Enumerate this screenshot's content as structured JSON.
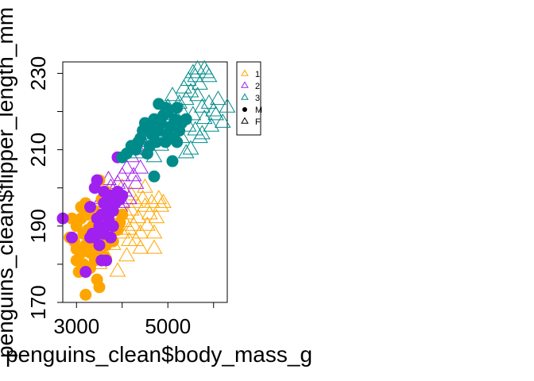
{
  "chart_data": {
    "type": "scatter",
    "title": "",
    "xlabel": "penguins_clean$body_mass_g",
    "ylabel": "penguins_clean$flipper_length_mm",
    "xlim": [
      2700,
      6300
    ],
    "ylim": [
      170,
      233
    ],
    "x_ticks": [
      3000,
      4000,
      5000,
      6000
    ],
    "x_tick_labels": [
      "3000",
      "",
      "5000",
      ""
    ],
    "y_ticks": [
      170,
      180,
      190,
      200,
      210,
      220,
      230
    ],
    "y_tick_labels": [
      "170",
      "",
      "190",
      "",
      "210",
      "",
      "230"
    ],
    "grid": false,
    "legend_position": "right",
    "legend": [
      {
        "label": "1",
        "symbol": "triangle",
        "color": "#FFA500"
      },
      {
        "label": "2",
        "symbol": "triangle",
        "color": "#A020F0"
      },
      {
        "label": "3",
        "symbol": "triangle",
        "color": "#008B8B"
      },
      {
        "label": "M",
        "symbol": "dot",
        "color": "#000000"
      },
      {
        "label": "F",
        "symbol": "triangle",
        "color": "#000000"
      }
    ],
    "colors": {
      "1": "#FFA500",
      "2": "#A020F0",
      "3": "#008B8B"
    },
    "series": [
      {
        "group": "1",
        "sex": "M",
        "marker": "dot",
        "points": [
          [
            2850,
            187
          ],
          [
            2900,
            192
          ],
          [
            2950,
            186
          ],
          [
            3000,
            190
          ],
          [
            3000,
            184
          ],
          [
            3000,
            181
          ],
          [
            3050,
            178
          ],
          [
            3100,
            183
          ],
          [
            3100,
            192
          ],
          [
            3150,
            188
          ],
          [
            3150,
            180
          ],
          [
            3200,
            185
          ],
          [
            3200,
            172
          ],
          [
            3250,
            193
          ],
          [
            3250,
            189
          ],
          [
            3300,
            187
          ],
          [
            3300,
            183
          ],
          [
            3350,
            190
          ],
          [
            3350,
            185
          ],
          [
            3400,
            181
          ],
          [
            3400,
            188
          ],
          [
            3450,
            184
          ],
          [
            3450,
            176
          ],
          [
            3500,
            174
          ],
          [
            3500,
            186
          ],
          [
            3550,
            191
          ],
          [
            3550,
            189
          ],
          [
            3600,
            187
          ],
          [
            3600,
            182
          ],
          [
            3650,
            185
          ],
          [
            3700,
            190
          ],
          [
            3750,
            188
          ],
          [
            3800,
            186
          ],
          [
            3850,
            190
          ],
          [
            3900,
            189
          ],
          [
            3950,
            191
          ],
          [
            4000,
            193
          ],
          [
            3400,
            194
          ],
          [
            3200,
            196
          ],
          [
            3100,
            195
          ],
          [
            3650,
            199
          ],
          [
            3700,
            195
          ],
          [
            3600,
            193
          ],
          [
            3550,
            197
          ],
          [
            3300,
            179
          ],
          [
            3500,
            202
          ],
          [
            3400,
            190
          ]
        ]
      },
      {
        "group": "1",
        "sex": "F",
        "marker": "triangle",
        "points": [
          [
            3500,
            180
          ],
          [
            3600,
            183
          ],
          [
            3700,
            187
          ],
          [
            3750,
            190
          ],
          [
            3800,
            185
          ],
          [
            3850,
            189
          ],
          [
            3900,
            192
          ],
          [
            3950,
            195
          ],
          [
            4000,
            188
          ],
          [
            4050,
            191
          ],
          [
            4100,
            193
          ],
          [
            4150,
            186
          ],
          [
            4200,
            194
          ],
          [
            4250,
            190
          ],
          [
            4300,
            196
          ],
          [
            4350,
            192
          ],
          [
            4400,
            188
          ],
          [
            4450,
            197
          ],
          [
            4500,
            195
          ],
          [
            4550,
            190
          ],
          [
            4600,
            193
          ],
          [
            4650,
            196
          ],
          [
            4700,
            184
          ],
          [
            4750,
            192
          ],
          [
            4800,
            197
          ],
          [
            4850,
            195
          ],
          [
            4900,
            196
          ],
          [
            3700,
            202
          ],
          [
            4000,
            200
          ],
          [
            4200,
            198
          ],
          [
            3900,
            178
          ],
          [
            4100,
            182
          ],
          [
            4300,
            186
          ],
          [
            4500,
            200
          ],
          [
            3650,
            196
          ],
          [
            3800,
            199
          ],
          [
            4700,
            188
          ],
          [
            4400,
            184
          ],
          [
            3550,
            187
          ],
          [
            4150,
            189
          ]
        ]
      },
      {
        "group": "2",
        "sex": "M",
        "marker": "dot",
        "points": [
          [
            2700,
            192
          ],
          [
            2900,
            187
          ],
          [
            3200,
            178
          ],
          [
            3300,
            195
          ],
          [
            3350,
            188
          ],
          [
            3400,
            200
          ],
          [
            3450,
            202
          ],
          [
            3450,
            192
          ],
          [
            3500,
            190
          ],
          [
            3500,
            185
          ],
          [
            3550,
            193
          ],
          [
            3600,
            188
          ],
          [
            3600,
            196
          ],
          [
            3650,
            190
          ],
          [
            3700,
            192
          ],
          [
            3700,
            195
          ],
          [
            3750,
            198
          ],
          [
            3800,
            190
          ],
          [
            3800,
            194
          ],
          [
            3850,
            196
          ],
          [
            3900,
            199
          ],
          [
            3950,
            197
          ],
          [
            4000,
            198
          ],
          [
            3900,
            208
          ],
          [
            3550,
            181
          ],
          [
            3650,
            181
          ],
          [
            3400,
            187
          ],
          [
            3300,
            187
          ],
          [
            3750,
            187
          ],
          [
            3600,
            199
          ]
        ]
      },
      {
        "group": "2",
        "sex": "F",
        "marker": "triangle",
        "points": [
          [
            3300,
            188
          ],
          [
            3400,
            193
          ],
          [
            3500,
            196
          ],
          [
            3550,
            197
          ],
          [
            3600,
            191
          ],
          [
            3650,
            194
          ],
          [
            3700,
            197
          ],
          [
            3750,
            200
          ],
          [
            3800,
            193
          ],
          [
            3850,
            197
          ],
          [
            3900,
            201
          ],
          [
            3950,
            195
          ],
          [
            4000,
            203
          ],
          [
            4050,
            199
          ],
          [
            4100,
            205
          ],
          [
            4150,
            197
          ],
          [
            4200,
            208
          ],
          [
            4250,
            203
          ],
          [
            4300,
            201
          ],
          [
            4350,
            210
          ],
          [
            4400,
            205
          ],
          [
            4500,
            210
          ],
          [
            3700,
            202
          ],
          [
            4000,
            196
          ]
        ]
      },
      {
        "group": "3",
        "sex": "M",
        "marker": "dot",
        "points": [
          [
            4000,
            208
          ],
          [
            4100,
            209
          ],
          [
            4200,
            211
          ],
          [
            4300,
            210
          ],
          [
            4350,
            212
          ],
          [
            4400,
            213
          ],
          [
            4450,
            215
          ],
          [
            4500,
            217
          ],
          [
            4550,
            209
          ],
          [
            4600,
            216
          ],
          [
            4650,
            214
          ],
          [
            4700,
            218
          ],
          [
            4750,
            212
          ],
          [
            4800,
            215
          ],
          [
            4850,
            217
          ],
          [
            4900,
            219
          ],
          [
            4950,
            212
          ],
          [
            5000,
            220
          ],
          [
            5050,
            216
          ],
          [
            5100,
            213
          ],
          [
            5150,
            218
          ],
          [
            5200,
            221
          ],
          [
            5250,
            215
          ],
          [
            5300,
            217
          ],
          [
            4700,
            203
          ],
          [
            5100,
            207
          ],
          [
            4800,
            222
          ],
          [
            5000,
            214
          ],
          [
            5400,
            218
          ],
          [
            4600,
            211
          ],
          [
            4950,
            221
          ],
          [
            5200,
            212
          ]
        ]
      },
      {
        "group": "3",
        "sex": "F",
        "marker": "triangle",
        "points": [
          [
            4300,
            209
          ],
          [
            4450,
            212
          ],
          [
            4600,
            214
          ],
          [
            4700,
            208
          ],
          [
            4750,
            216
          ],
          [
            4850,
            211
          ],
          [
            4950,
            213
          ],
          [
            5000,
            221
          ],
          [
            5050,
            218
          ],
          [
            5100,
            224
          ],
          [
            5150,
            219
          ],
          [
            5200,
            216
          ],
          [
            5250,
            222
          ],
          [
            5300,
            220
          ],
          [
            5350,
            226
          ],
          [
            5400,
            223
          ],
          [
            5450,
            228
          ],
          [
            5500,
            225
          ],
          [
            5550,
            230
          ],
          [
            5600,
            229
          ],
          [
            5650,
            224
          ],
          [
            5700,
            227
          ],
          [
            5750,
            221
          ],
          [
            5800,
            218
          ],
          [
            5850,
            230
          ],
          [
            5900,
            222
          ],
          [
            5950,
            216
          ],
          [
            6000,
            220
          ],
          [
            6100,
            223
          ],
          [
            6300,
            221
          ],
          [
            5600,
            215
          ],
          [
            5700,
            213
          ],
          [
            5500,
            210
          ],
          [
            5400,
            209
          ],
          [
            5800,
            231
          ],
          [
            5650,
            231
          ],
          [
            5900,
            229
          ],
          [
            6050,
            219
          ],
          [
            5300,
            213
          ],
          [
            5550,
            219
          ],
          [
            4900,
            216
          ],
          [
            5450,
            216
          ],
          [
            5750,
            214
          ],
          [
            6200,
            217
          ]
        ]
      }
    ]
  }
}
